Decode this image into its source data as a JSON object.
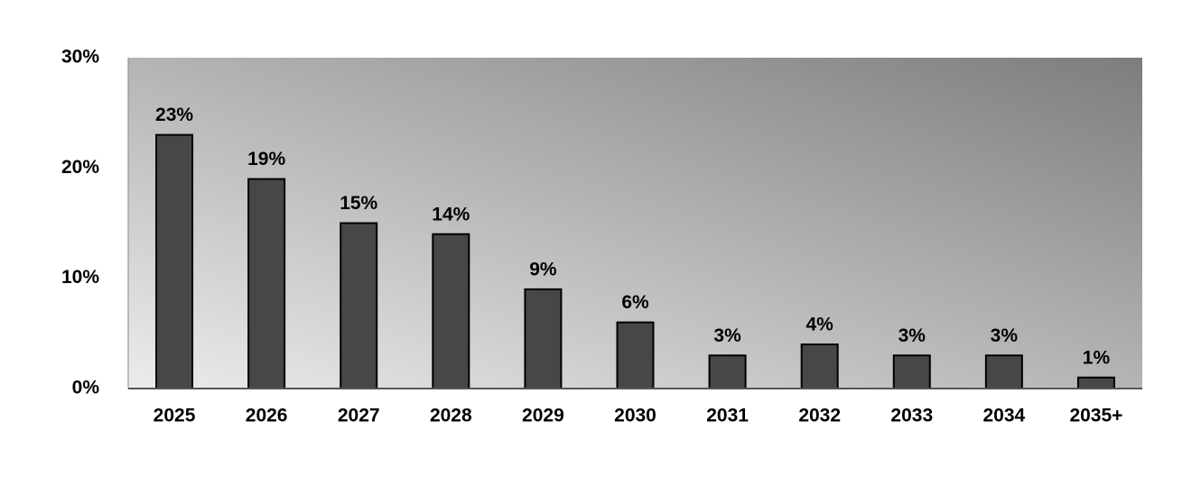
{
  "chart_data": {
    "type": "bar",
    "categories": [
      "2025",
      "2026",
      "2027",
      "2028",
      "2029",
      "2030",
      "2031",
      "2032",
      "2033",
      "2034",
      "2035+"
    ],
    "values": [
      23,
      19,
      15,
      14,
      9,
      6,
      3,
      4,
      3,
      3,
      1
    ],
    "value_labels": [
      "23%",
      "19%",
      "15%",
      "14%",
      "9%",
      "6%",
      "3%",
      "4%",
      "3%",
      "3%",
      "1%"
    ],
    "color": "#474747",
    "ylim": [
      0,
      30
    ],
    "yticks": [
      {
        "value": 0,
        "label": "0%"
      },
      {
        "value": 10,
        "label": "10%"
      },
      {
        "value": 20,
        "label": "20%"
      },
      {
        "value": 30,
        "label": "30%"
      }
    ],
    "grid": false
  }
}
